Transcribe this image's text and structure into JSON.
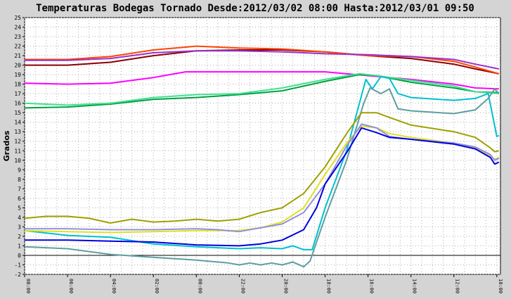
{
  "chart_data": {
    "type": "line",
    "title": "Temperaturas Bodegas Tornado Desde:2012/03/02 08:00 Hasta:2012/03/01 09:50",
    "ylabel": "Grados",
    "xlabel": "",
    "ylim": [
      -2,
      25
    ],
    "yticks": [
      -2,
      -1,
      0,
      1,
      2,
      3,
      4,
      5,
      6,
      7,
      8,
      9,
      10,
      11,
      12,
      13,
      14,
      15,
      16,
      17,
      18,
      19,
      20,
      21,
      22,
      23,
      24,
      25
    ],
    "xlim": [
      0,
      22.17
    ],
    "x_ticks": [
      {
        "x": 0,
        "label": "08:00"
      },
      {
        "x": 2,
        "label": "06:00"
      },
      {
        "x": 4,
        "label": "04:00"
      },
      {
        "x": 6,
        "label": "02:00"
      },
      {
        "x": 8,
        "label": "00:00"
      },
      {
        "x": 10,
        "label": "22:00"
      },
      {
        "x": 12,
        "label": "20:00"
      },
      {
        "x": 14,
        "label": "18:00"
      },
      {
        "x": 16,
        "label": "16:00"
      },
      {
        "x": 18,
        "label": "14:00"
      },
      {
        "x": 20,
        "label": "12:00"
      },
      {
        "x": 22,
        "label": "10:00"
      }
    ],
    "grid": true,
    "series": [
      {
        "color": "#8b0000",
        "points": [
          [
            0,
            20
          ],
          [
            2,
            20
          ],
          [
            4,
            20.3
          ],
          [
            6,
            21
          ],
          [
            8,
            21.5
          ],
          [
            10,
            21.6
          ],
          [
            12,
            21.6
          ],
          [
            14,
            21.4
          ],
          [
            16,
            21
          ],
          [
            18,
            20.7
          ],
          [
            20,
            20.1
          ],
          [
            21,
            19.6
          ],
          [
            22.1,
            19.1
          ]
        ]
      },
      {
        "color": "#ff4500",
        "points": [
          [
            0,
            20.6
          ],
          [
            2,
            20.6
          ],
          [
            4,
            20.9
          ],
          [
            6,
            21.6
          ],
          [
            8,
            22
          ],
          [
            10,
            21.8
          ],
          [
            12,
            21.7
          ],
          [
            14,
            21.4
          ],
          [
            16,
            21
          ],
          [
            18,
            20.9
          ],
          [
            20,
            20.4
          ],
          [
            21,
            19.8
          ],
          [
            22.1,
            19.1
          ]
        ]
      },
      {
        "color": "#9932cc",
        "points": [
          [
            0,
            20.5
          ],
          [
            2,
            20.5
          ],
          [
            4,
            20.7
          ],
          [
            6,
            21.3
          ],
          [
            8,
            21.5
          ],
          [
            10,
            21.5
          ],
          [
            12,
            21.4
          ],
          [
            14,
            21.2
          ],
          [
            16,
            21.1
          ],
          [
            18,
            20.9
          ],
          [
            20,
            20.6
          ],
          [
            21,
            20.1
          ],
          [
            22.1,
            19.6
          ]
        ]
      },
      {
        "color": "#ff00ff",
        "points": [
          [
            0,
            18.1
          ],
          [
            2,
            18
          ],
          [
            4,
            18.1
          ],
          [
            6,
            18.7
          ],
          [
            7.5,
            19.3
          ],
          [
            10,
            19.3
          ],
          [
            12,
            19.3
          ],
          [
            14,
            19.3
          ],
          [
            16,
            18.9
          ],
          [
            18,
            18.5
          ],
          [
            20,
            18
          ],
          [
            21,
            17.6
          ],
          [
            22.1,
            17.5
          ]
        ]
      },
      {
        "color": "#00a040",
        "points": [
          [
            0,
            15.5
          ],
          [
            2,
            15.6
          ],
          [
            4,
            15.9
          ],
          [
            6,
            16.4
          ],
          [
            8,
            16.6
          ],
          [
            10,
            16.9
          ],
          [
            12,
            17.3
          ],
          [
            14,
            18.3
          ],
          [
            15.6,
            19
          ],
          [
            16.4,
            18.9
          ],
          [
            18,
            18.2
          ],
          [
            20,
            17.6
          ],
          [
            21,
            17.2
          ],
          [
            22.1,
            17.1
          ]
        ]
      },
      {
        "color": "#40e090",
        "points": [
          [
            0,
            16
          ],
          [
            2,
            15.8
          ],
          [
            4,
            16
          ],
          [
            6,
            16.6
          ],
          [
            8,
            16.9
          ],
          [
            10,
            17
          ],
          [
            12,
            17.6
          ],
          [
            14,
            18.5
          ],
          [
            15.6,
            19.1
          ],
          [
            16.4,
            18.9
          ],
          [
            18,
            18.4
          ],
          [
            20,
            17.8
          ],
          [
            21,
            17.2
          ],
          [
            22.1,
            17
          ]
        ]
      },
      {
        "color": "#00c0d0",
        "points": [
          [
            0,
            2.6
          ],
          [
            2,
            2.1
          ],
          [
            4,
            1.9
          ],
          [
            6,
            1.2
          ],
          [
            8,
            0.9
          ],
          [
            10,
            0.7
          ],
          [
            11,
            0.8
          ],
          [
            12,
            0.7
          ],
          [
            12.5,
            1
          ],
          [
            13,
            0.6
          ],
          [
            13.4,
            0.6
          ],
          [
            14,
            5
          ],
          [
            15,
            11
          ],
          [
            15.9,
            18.5
          ],
          [
            16.2,
            17.5
          ],
          [
            16.6,
            18.8
          ],
          [
            17,
            18.6
          ],
          [
            17.4,
            17
          ],
          [
            18,
            16.6
          ],
          [
            20,
            16.3
          ],
          [
            21,
            16.5
          ],
          [
            21.6,
            17
          ],
          [
            22,
            12.5
          ],
          [
            22.1,
            12.6
          ]
        ]
      },
      {
        "color": "#5f9ea0",
        "points": [
          [
            0,
            0.9
          ],
          [
            2,
            0.7
          ],
          [
            4,
            0.1
          ],
          [
            6,
            -0.2
          ],
          [
            8,
            -0.5
          ],
          [
            9.5,
            -0.8
          ],
          [
            10,
            -1
          ],
          [
            10.5,
            -0.8
          ],
          [
            11,
            -1
          ],
          [
            11.5,
            -0.8
          ],
          [
            12,
            -1
          ],
          [
            12.5,
            -0.7
          ],
          [
            13,
            -1.2
          ],
          [
            13.3,
            -0.6
          ],
          [
            14,
            4
          ],
          [
            15,
            10
          ],
          [
            15.8,
            16
          ],
          [
            16.1,
            17.6
          ],
          [
            16.6,
            17
          ],
          [
            17,
            17.5
          ],
          [
            17.4,
            15.4
          ],
          [
            18,
            15.2
          ],
          [
            20,
            14.9
          ],
          [
            21,
            15.3
          ],
          [
            21.6,
            16.5
          ],
          [
            21.9,
            17.5
          ],
          [
            22.1,
            17
          ]
        ]
      },
      {
        "color": "#a0a000",
        "points": [
          [
            0,
            3.9
          ],
          [
            1,
            4.1
          ],
          [
            2,
            4.1
          ],
          [
            3,
            3.9
          ],
          [
            4,
            3.4
          ],
          [
            5,
            3.8
          ],
          [
            6,
            3.5
          ],
          [
            7,
            3.6
          ],
          [
            8,
            3.8
          ],
          [
            9,
            3.6
          ],
          [
            10,
            3.8
          ],
          [
            11,
            4.5
          ],
          [
            12,
            5
          ],
          [
            13,
            6.5
          ],
          [
            14,
            9.3
          ],
          [
            15,
            12.8
          ],
          [
            15.7,
            15
          ],
          [
            16.4,
            15
          ],
          [
            17,
            14.5
          ],
          [
            18,
            13.7
          ],
          [
            20,
            13
          ],
          [
            21,
            12.4
          ],
          [
            21.7,
            11.3
          ],
          [
            21.9,
            10.9
          ],
          [
            22.1,
            11
          ]
        ]
      },
      {
        "color": "#e0e020",
        "points": [
          [
            0,
            2.6
          ],
          [
            2,
            2.5
          ],
          [
            4,
            2.4
          ],
          [
            6,
            2.5
          ],
          [
            8,
            2.6
          ],
          [
            10,
            2.6
          ],
          [
            11,
            2.9
          ],
          [
            12,
            3.5
          ],
          [
            13,
            5
          ],
          [
            14,
            8.5
          ],
          [
            15,
            11.8
          ],
          [
            15.7,
            13.6
          ],
          [
            16.4,
            13.4
          ],
          [
            17,
            12.8
          ],
          [
            18,
            12.4
          ],
          [
            20,
            11.8
          ],
          [
            21,
            11.3
          ],
          [
            21.7,
            10.5
          ],
          [
            21.9,
            10.1
          ],
          [
            22.1,
            10.3
          ]
        ]
      },
      {
        "color": "#9090e0",
        "points": [
          [
            0,
            2.8
          ],
          [
            2,
            2.8
          ],
          [
            4,
            2.7
          ],
          [
            6,
            2.7
          ],
          [
            8,
            2.8
          ],
          [
            9,
            2.7
          ],
          [
            10,
            2.5
          ],
          [
            11,
            2.9
          ],
          [
            12,
            3.3
          ],
          [
            13,
            4.5
          ],
          [
            14,
            7.5
          ],
          [
            15,
            11.5
          ],
          [
            15.7,
            13.8
          ],
          [
            16.4,
            13.4
          ],
          [
            17,
            12.5
          ],
          [
            18,
            12.2
          ],
          [
            20,
            11.8
          ],
          [
            21,
            11.4
          ],
          [
            21.7,
            10.6
          ],
          [
            21.9,
            10
          ],
          [
            22.1,
            10.2
          ]
        ]
      },
      {
        "color": "#0000e0",
        "points": [
          [
            0,
            1.6
          ],
          [
            2,
            1.6
          ],
          [
            4,
            1.5
          ],
          [
            6,
            1.4
          ],
          [
            8,
            1.1
          ],
          [
            10,
            1
          ],
          [
            11,
            1.2
          ],
          [
            12,
            1.6
          ],
          [
            13,
            2.7
          ],
          [
            13.6,
            5
          ],
          [
            14,
            7.5
          ],
          [
            15,
            10.8
          ],
          [
            15.7,
            13.4
          ],
          [
            16.4,
            12.9
          ],
          [
            17,
            12.4
          ],
          [
            18,
            12.2
          ],
          [
            20,
            11.7
          ],
          [
            21,
            11.2
          ],
          [
            21.7,
            10.3
          ],
          [
            21.9,
            9.6
          ],
          [
            22.1,
            9.8
          ]
        ]
      }
    ]
  }
}
